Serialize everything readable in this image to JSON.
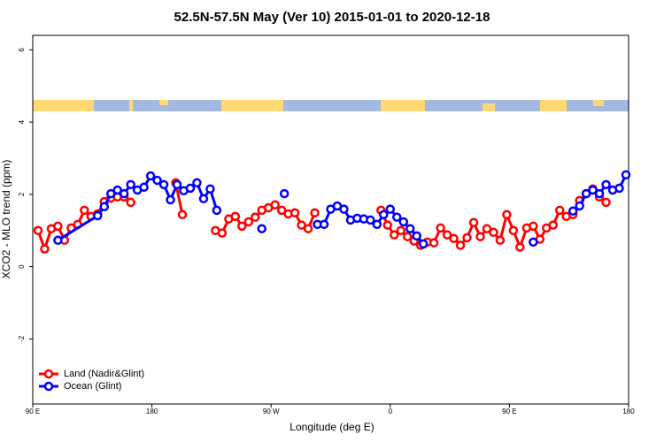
{
  "chart_data": {
    "type": "line",
    "title": "52.5N-57.5N May (Ver 10)   2015-01-01 to 2020-12-18",
    "x_label": "Longitude (deg E)",
    "y_label": "XCO2 - MLO trend (ppm)",
    "xlim": [
      90,
      540
    ],
    "ylim": [
      -3.8,
      6.4
    ],
    "xticks": [
      {
        "value": 90,
        "label": "90 E"
      },
      180,
      {
        "value": 270,
        "label": "90 W"
      },
      {
        "value": 360,
        "label": "0"
      },
      {
        "value": 450,
        "label": "90 E"
      },
      {
        "value": 540,
        "label": "180"
      }
    ],
    "yticks": [
      -2,
      0,
      2,
      4,
      6
    ],
    "legend": "bottom-left",
    "series": [
      {
        "name": "Land (Nadir&Glint)",
        "color": "#ff0000",
        "x": [
          94,
          99,
          104,
          109,
          114,
          119,
          124,
          129,
          134,
          139,
          144,
          149,
          154,
          159,
          164,
          null,
          198,
          203,
          null,
          228,
          233,
          238,
          243,
          248,
          253,
          258,
          263,
          268,
          273,
          278,
          283,
          288,
          293,
          298,
          303,
          null,
          353,
          358,
          363,
          368,
          373,
          378,
          383,
          388,
          393,
          398,
          403,
          408,
          413,
          418,
          423,
          428,
          433,
          438,
          443,
          448,
          453,
          458,
          463,
          468,
          473,
          478,
          483,
          488,
          493,
          498,
          503,
          508,
          513,
          518,
          523
        ],
        "values": [
          1.0,
          0.49,
          1.05,
          1.12,
          0.73,
          1.07,
          1.17,
          1.56,
          1.39,
          1.46,
          1.8,
          1.9,
          1.93,
          1.93,
          1.78,
          null,
          2.32,
          1.44,
          null,
          1.0,
          0.93,
          1.32,
          1.39,
          1.12,
          1.24,
          1.37,
          1.56,
          1.63,
          1.71,
          1.56,
          1.46,
          1.49,
          1.15,
          1.05,
          1.49,
          null,
          1.56,
          1.15,
          0.88,
          1.0,
          0.83,
          0.71,
          0.59,
          0.68,
          0.66,
          1.07,
          0.88,
          0.78,
          0.59,
          0.8,
          1.22,
          0.83,
          1.05,
          0.95,
          0.73,
          1.44,
          1.0,
          0.54,
          1.07,
          1.12,
          0.76,
          1.07,
          1.15,
          1.56,
          1.39,
          1.44,
          1.83,
          2.02,
          2.15,
          1.93,
          1.78
        ]
      },
      {
        "name": "Ocean (Glint)",
        "color": "#0000ff",
        "x": [
          109,
          139,
          144,
          149,
          154,
          159,
          164,
          169,
          174,
          179,
          184,
          189,
          194,
          199,
          204,
          209,
          214,
          219,
          224,
          229,
          null,
          263,
          null,
          280,
          null,
          305,
          310,
          315,
          320,
          325,
          330,
          335,
          340,
          345,
          350,
          355,
          360,
          365,
          370,
          375,
          380,
          385,
          null,
          468,
          null,
          498,
          503,
          508,
          513,
          518,
          523,
          528,
          533,
          538
        ],
        "values": [
          0.73,
          1.41,
          1.66,
          2.02,
          2.12,
          2.02,
          2.27,
          2.12,
          2.2,
          2.51,
          2.39,
          2.27,
          1.85,
          2.27,
          2.1,
          2.17,
          2.32,
          1.88,
          2.15,
          1.56,
          null,
          1.05,
          null,
          2.02,
          null,
          1.17,
          1.17,
          1.59,
          1.68,
          1.59,
          1.29,
          1.34,
          1.32,
          1.29,
          1.17,
          1.44,
          1.59,
          1.37,
          1.24,
          1.05,
          0.85,
          0.63,
          null,
          0.68,
          null,
          1.54,
          1.68,
          2.02,
          2.12,
          2.02,
          2.27,
          2.12,
          2.17,
          2.54
        ]
      }
    ]
  }
}
